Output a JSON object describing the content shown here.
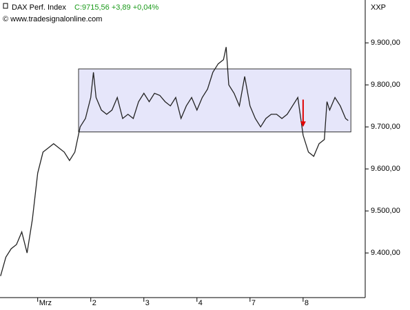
{
  "chart_data": {
    "type": "line",
    "title": "DAX Perf. Index",
    "subtitle": "C:9715,56 +3,89 +0,04%",
    "source": "© www.tradesignalonline.com",
    "axis_label": "XXP",
    "color": "#222222",
    "x": [
      0.3,
      0.4,
      0.5,
      0.6,
      0.7,
      0.8,
      0.9,
      1.0,
      1.1,
      1.2,
      1.3,
      1.4,
      1.5,
      1.6,
      1.7,
      1.8,
      1.9,
      2.0,
      2.05,
      2.1,
      2.2,
      2.3,
      2.4,
      2.5,
      2.6,
      2.7,
      2.8,
      2.9,
      3.0,
      3.1,
      3.2,
      3.3,
      3.4,
      3.5,
      3.6,
      3.7,
      3.8,
      3.9,
      4.0,
      4.1,
      4.2,
      4.3,
      4.4,
      4.5,
      4.55,
      4.6,
      4.7,
      4.8,
      4.9,
      5.0,
      5.1,
      5.2,
      5.3,
      5.4,
      5.5,
      5.6,
      5.7,
      5.8,
      5.9,
      6.0,
      6.1,
      6.2,
      6.3,
      6.4,
      6.45,
      6.5,
      6.6,
      6.7,
      6.8,
      6.85
    ],
    "values": [
      9345,
      9390,
      9410,
      9420,
      9450,
      9400,
      9480,
      9590,
      9640,
      9650,
      9660,
      9650,
      9640,
      9620,
      9640,
      9700,
      9720,
      9770,
      9830,
      9770,
      9740,
      9730,
      9740,
      9770,
      9720,
      9730,
      9720,
      9760,
      9780,
      9760,
      9780,
      9775,
      9760,
      9750,
      9770,
      9720,
      9750,
      9770,
      9740,
      9770,
      9790,
      9830,
      9850,
      9860,
      9890,
      9800,
      9780,
      9750,
      9820,
      9750,
      9720,
      9700,
      9720,
      9730,
      9730,
      9720,
      9730,
      9750,
      9770,
      9680,
      9640,
      9630,
      9660,
      9670,
      9760,
      9740,
      9770,
      9750,
      9720,
      9715
    ],
    "xlim": [
      0.29,
      7.17
    ],
    "xticks": [
      {
        "value": 1,
        "label": "Mrz"
      },
      2,
      3,
      4,
      {
        "value": 5,
        "label": "7"
      },
      {
        "value": 6,
        "label": "8"
      }
    ],
    "ylim": [
      9297,
      10002
    ],
    "yticks": [
      {
        "value": 9400,
        "label": "9.400,00"
      },
      {
        "value": 9500,
        "label": "9.500,00"
      },
      {
        "value": 9600,
        "label": "9.600,00"
      },
      {
        "value": 9700,
        "label": "9.700,00"
      },
      {
        "value": 9800,
        "label": "9.800,00"
      },
      {
        "value": 9900,
        "label": "9.900,00"
      }
    ],
    "range_box": {
      "x": [
        1.77,
        6.9
      ],
      "y": [
        9688,
        9838
      ],
      "color": "#e6e6fa"
    },
    "arrow": {
      "x": 6.0,
      "y": [
        9765,
        9700
      ],
      "color": "#e00000"
    }
  }
}
